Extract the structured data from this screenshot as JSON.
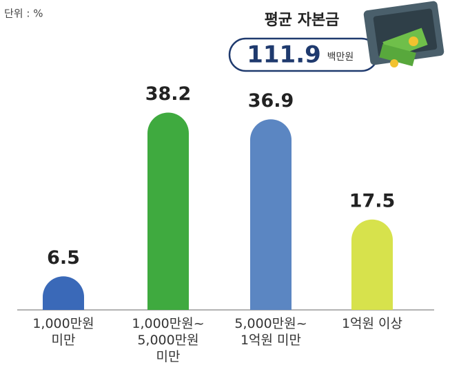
{
  "chart_data": {
    "type": "bar",
    "unit_label": "단위 : %",
    "categories": [
      "1,000만원\n미만",
      "1,000만원~\n5,000만원\n미만",
      "5,000만원~\n1억원 미만",
      "1억원 이상"
    ],
    "values": [
      6.5,
      38.2,
      36.9,
      17.5
    ],
    "colors": [
      "#3a69b8",
      "#3faa3f",
      "#5b86c2",
      "#d7e24c"
    ],
    "annotation": {
      "title": "평균 자본금",
      "value": 111.9,
      "unit": "백만원"
    }
  }
}
